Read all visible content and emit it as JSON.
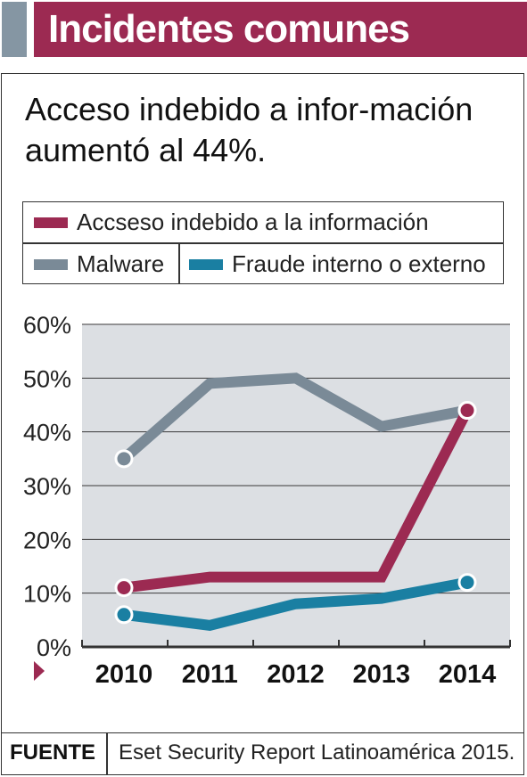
{
  "header": {
    "title": "Incidentes comunes"
  },
  "subtitle": "Acceso indebido a infor-mación aumentó al 44%.",
  "source": {
    "label": "FUENTE",
    "text": "Eset Security Report Latinoamérica 2015."
  },
  "colors": {
    "header_bg": "#9c2a52",
    "header_accent": "#8596a3",
    "plot_bg": "#dcdfe3",
    "gridline": "#3a3a3a"
  },
  "chart_data": {
    "type": "line",
    "title": "",
    "xlabel": "",
    "ylabel": "",
    "x": [
      "2010",
      "2011",
      "2012",
      "2013",
      "2014"
    ],
    "ylim": [
      0,
      60
    ],
    "yticks": [
      "0%",
      "10%",
      "20%",
      "30%",
      "40%",
      "50%",
      "60%"
    ],
    "grid": true,
    "legend_position": "top",
    "series": [
      {
        "name": "Accseso indebido a la información",
        "color": "#9c2a52",
        "values": [
          11,
          13,
          13,
          13,
          44
        ],
        "marker_points": [
          0,
          4
        ]
      },
      {
        "name": "Malware",
        "color": "#7a8a97",
        "values": [
          35,
          49,
          50,
          41,
          44
        ],
        "marker_points": [
          0,
          4
        ]
      },
      {
        "name": "Fraude interno o externo",
        "color": "#1a7fa2",
        "values": [
          6,
          4,
          8,
          9,
          12
        ],
        "marker_points": [
          0,
          4
        ]
      }
    ]
  }
}
